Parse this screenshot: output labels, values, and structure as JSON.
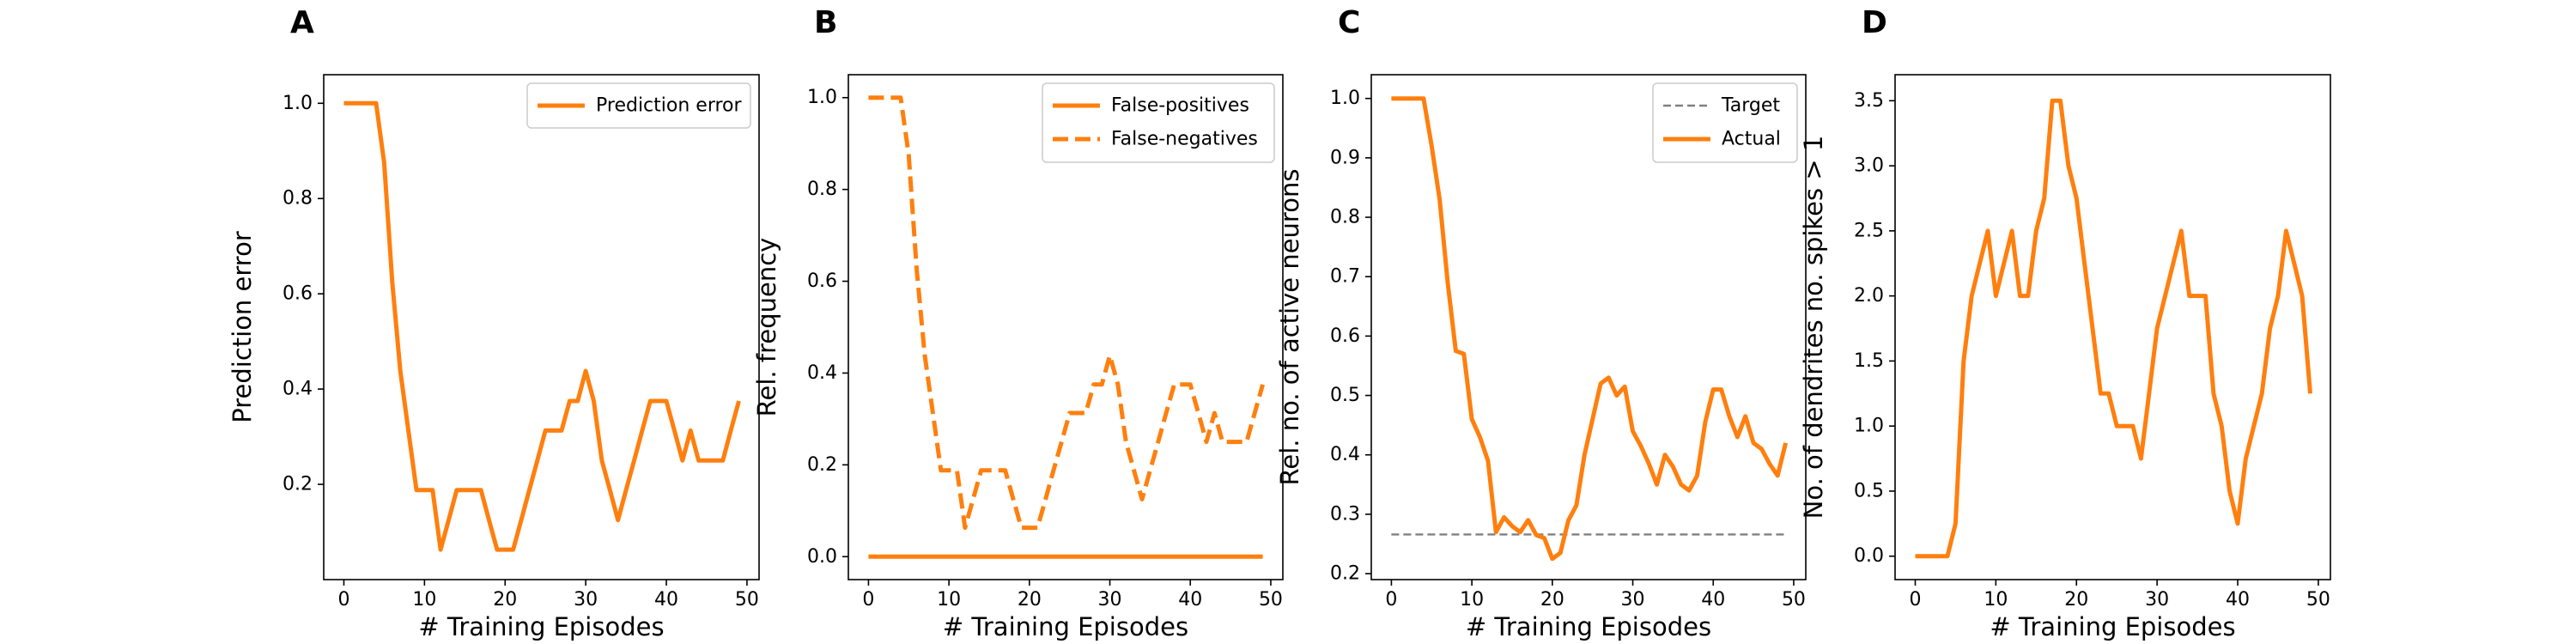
{
  "colors": {
    "series": "#ff7f0e",
    "target": "#808080",
    "axis": "#000000",
    "legend_border": "#cccccc"
  },
  "chart_data": [
    {
      "panel": "A",
      "type": "line",
      "xlabel": "# Training Episodes",
      "ylabel": "Prediction error",
      "xlim": [
        -2.5,
        51.5
      ],
      "ylim": [
        0.0,
        1.06
      ],
      "xticks": [
        0,
        10,
        20,
        30,
        40,
        50
      ],
      "yticks": [
        0.2,
        0.4,
        0.6,
        0.8,
        1.0
      ],
      "ytick_labels": [
        "0.2",
        "0.4",
        "0.6",
        "0.8",
        "1.0"
      ],
      "legend_position": "top-right",
      "x": [
        0,
        1,
        2,
        3,
        4,
        5,
        6,
        7,
        8,
        9,
        10,
        11,
        12,
        13,
        14,
        15,
        16,
        17,
        18,
        19,
        20,
        21,
        22,
        23,
        24,
        25,
        26,
        27,
        28,
        29,
        30,
        31,
        32,
        33,
        34,
        35,
        36,
        37,
        38,
        39,
        40,
        41,
        42,
        43,
        44,
        45,
        46,
        47,
        48,
        49
      ],
      "series": [
        {
          "name": "Prediction error",
          "style": "solid",
          "values": [
            1.0,
            1.0,
            1.0,
            1.0,
            1.0,
            0.875,
            0.625,
            0.438,
            0.313,
            0.188,
            0.188,
            0.188,
            0.063,
            0.125,
            0.188,
            0.188,
            0.188,
            0.188,
            0.125,
            0.063,
            0.063,
            0.063,
            0.125,
            0.188,
            0.25,
            0.313,
            0.313,
            0.313,
            0.375,
            0.375,
            0.438,
            0.375,
            0.25,
            0.188,
            0.125,
            0.188,
            0.25,
            0.313,
            0.375,
            0.375,
            0.375,
            0.313,
            0.25,
            0.313,
            0.25,
            0.25,
            0.25,
            0.25,
            0.313,
            0.375
          ]
        }
      ]
    },
    {
      "panel": "B",
      "type": "line",
      "xlabel": "# Training Episodes",
      "ylabel": "Rel. frequency",
      "xlim": [
        -2.5,
        51.5
      ],
      "ylim": [
        -0.05,
        1.05
      ],
      "xticks": [
        0,
        10,
        20,
        30,
        40,
        50
      ],
      "yticks": [
        0.0,
        0.2,
        0.4,
        0.6,
        0.8,
        1.0
      ],
      "ytick_labels": [
        "0.0",
        "0.2",
        "0.4",
        "0.6",
        "0.8",
        "1.0"
      ],
      "legend_position": "top-right",
      "x": [
        0,
        1,
        2,
        3,
        4,
        5,
        6,
        7,
        8,
        9,
        10,
        11,
        12,
        13,
        14,
        15,
        16,
        17,
        18,
        19,
        20,
        21,
        22,
        23,
        24,
        25,
        26,
        27,
        28,
        29,
        30,
        31,
        32,
        33,
        34,
        35,
        36,
        37,
        38,
        39,
        40,
        41,
        42,
        43,
        44,
        45,
        46,
        47,
        48,
        49
      ],
      "series": [
        {
          "name": "False-positives",
          "style": "solid",
          "values": [
            0,
            0,
            0,
            0,
            0,
            0,
            0,
            0,
            0,
            0,
            0,
            0,
            0,
            0,
            0,
            0,
            0,
            0,
            0,
            0,
            0,
            0,
            0,
            0,
            0,
            0,
            0,
            0,
            0,
            0,
            0,
            0,
            0,
            0,
            0,
            0,
            0,
            0,
            0,
            0,
            0,
            0,
            0,
            0,
            0,
            0,
            0,
            0,
            0,
            0
          ]
        },
        {
          "name": "False-negatives",
          "style": "dashed",
          "values": [
            1.0,
            1.0,
            1.0,
            1.0,
            1.0,
            0.875,
            0.625,
            0.438,
            0.313,
            0.188,
            0.188,
            0.188,
            0.063,
            0.125,
            0.188,
            0.188,
            0.188,
            0.188,
            0.125,
            0.063,
            0.063,
            0.063,
            0.125,
            0.188,
            0.25,
            0.313,
            0.313,
            0.313,
            0.375,
            0.375,
            0.438,
            0.375,
            0.25,
            0.188,
            0.125,
            0.188,
            0.25,
            0.313,
            0.375,
            0.375,
            0.375,
            0.313,
            0.25,
            0.313,
            0.25,
            0.25,
            0.25,
            0.25,
            0.313,
            0.375
          ]
        }
      ]
    },
    {
      "panel": "C",
      "type": "line",
      "xlabel": "# Training Episodes",
      "ylabel": "Rel. no. of active neurons",
      "xlim": [
        -2.5,
        51.5
      ],
      "ylim": [
        0.19,
        1.04
      ],
      "xticks": [
        0,
        10,
        20,
        30,
        40,
        50
      ],
      "yticks": [
        0.2,
        0.3,
        0.4,
        0.5,
        0.6,
        0.7,
        0.8,
        0.9,
        1.0
      ],
      "ytick_labels": [
        "0.2",
        "0.3",
        "0.4",
        "0.5",
        "0.6",
        "0.7",
        "0.8",
        "0.9",
        "1.0"
      ],
      "legend_position": "top-right",
      "x": [
        0,
        1,
        2,
        3,
        4,
        5,
        6,
        7,
        8,
        9,
        10,
        11,
        12,
        13,
        14,
        15,
        16,
        17,
        18,
        19,
        20,
        21,
        22,
        23,
        24,
        25,
        26,
        27,
        28,
        29,
        30,
        31,
        32,
        33,
        34,
        35,
        36,
        37,
        38,
        39,
        40,
        41,
        42,
        43,
        44,
        45,
        46,
        47,
        48,
        49
      ],
      "series": [
        {
          "name": "Target",
          "style": "dashed",
          "values": [
            0.266,
            0.266,
            0.266,
            0.266,
            0.266,
            0.266,
            0.266,
            0.266,
            0.266,
            0.266,
            0.266,
            0.266,
            0.266,
            0.266,
            0.266,
            0.266,
            0.266,
            0.266,
            0.266,
            0.266,
            0.266,
            0.266,
            0.266,
            0.266,
            0.266,
            0.266,
            0.266,
            0.266,
            0.266,
            0.266,
            0.266,
            0.266,
            0.266,
            0.266,
            0.266,
            0.266,
            0.266,
            0.266,
            0.266,
            0.266,
            0.266,
            0.266,
            0.266,
            0.266,
            0.266,
            0.266,
            0.266,
            0.266,
            0.266,
            0.266
          ]
        },
        {
          "name": "Actual",
          "style": "solid",
          "values": [
            1.0,
            1.0,
            1.0,
            1.0,
            1.0,
            0.92,
            0.83,
            0.69,
            0.575,
            0.57,
            0.46,
            0.43,
            0.39,
            0.27,
            0.295,
            0.28,
            0.27,
            0.29,
            0.265,
            0.26,
            0.225,
            0.235,
            0.29,
            0.315,
            0.4,
            0.46,
            0.52,
            0.53,
            0.5,
            0.515,
            0.44,
            0.415,
            0.385,
            0.35,
            0.4,
            0.38,
            0.35,
            0.34,
            0.365,
            0.455,
            0.51,
            0.51,
            0.465,
            0.43,
            0.465,
            0.42,
            0.41,
            0.385,
            0.365,
            0.42
          ]
        }
      ]
    },
    {
      "panel": "D",
      "type": "line",
      "xlabel": "# Training Episodes",
      "ylabel": "No. of dendrites no. spikes > 1",
      "xlim": [
        -2.5,
        51.5
      ],
      "ylim": [
        -0.18,
        3.7
      ],
      "xticks": [
        0,
        10,
        20,
        30,
        40,
        50
      ],
      "yticks": [
        0.0,
        0.5,
        1.0,
        1.5,
        2.0,
        2.5,
        3.0,
        3.5
      ],
      "ytick_labels": [
        "0.0",
        "0.5",
        "1.0",
        "1.5",
        "2.0",
        "2.5",
        "3.0",
        "3.5"
      ],
      "x": [
        0,
        1,
        2,
        3,
        4,
        5,
        6,
        7,
        8,
        9,
        10,
        11,
        12,
        13,
        14,
        15,
        16,
        17,
        18,
        19,
        20,
        21,
        22,
        23,
        24,
        25,
        26,
        27,
        28,
        29,
        30,
        31,
        32,
        33,
        34,
        35,
        36,
        37,
        38,
        39,
        40,
        41,
        42,
        43,
        44,
        45,
        46,
        47,
        48,
        49
      ],
      "series": [
        {
          "style": "solid",
          "values": [
            0,
            0,
            0,
            0,
            0,
            0.25,
            1.5,
            2.0,
            2.25,
            2.5,
            2.0,
            2.25,
            2.5,
            2.0,
            2.0,
            2.5,
            2.75,
            3.5,
            3.5,
            3.0,
            2.75,
            2.25,
            1.75,
            1.25,
            1.25,
            1.0,
            1.0,
            1.0,
            0.75,
            1.25,
            1.75,
            2.0,
            2.25,
            2.5,
            2.0,
            2.0,
            2.0,
            1.25,
            1.0,
            0.5,
            0.25,
            0.75,
            1.0,
            1.25,
            1.75,
            2.0,
            2.5,
            2.25,
            2.0,
            1.25
          ]
        }
      ]
    }
  ]
}
